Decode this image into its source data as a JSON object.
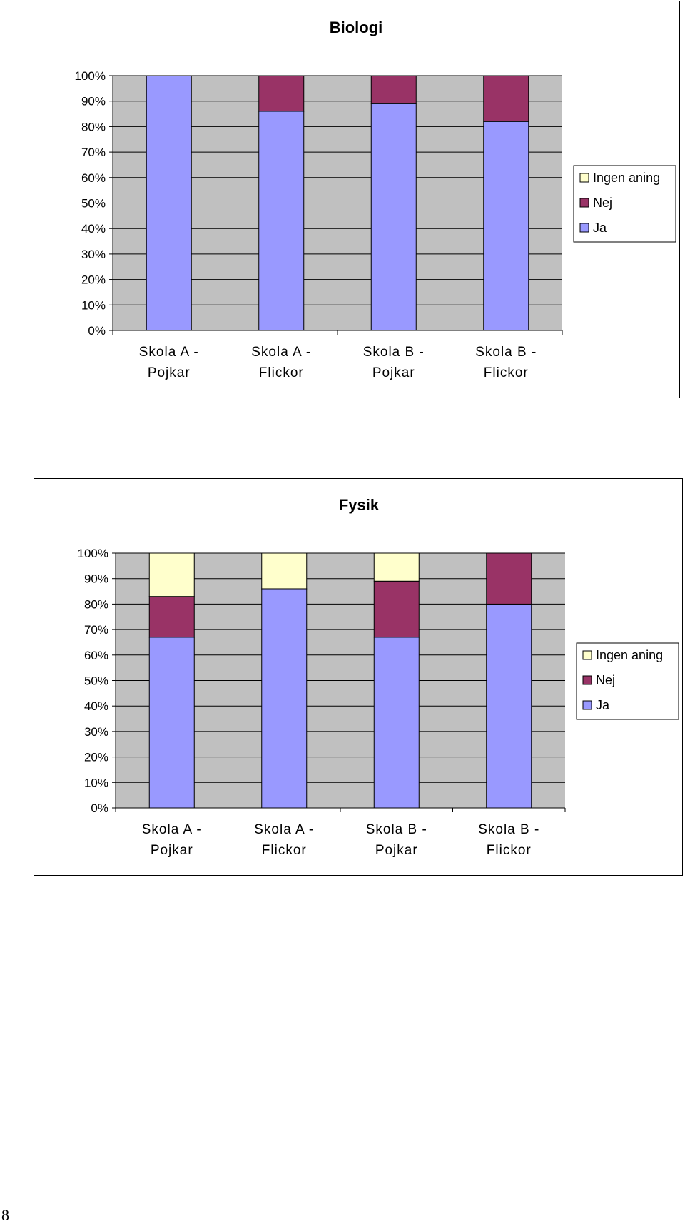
{
  "page": {
    "number": "8"
  },
  "chart_data": [
    {
      "id": "biologi",
      "type": "bar",
      "stacked": true,
      "percent": true,
      "title": "Biologi",
      "categories": [
        [
          "Skola A -",
          "Pojkar"
        ],
        [
          "Skola A -",
          "Flickor"
        ],
        [
          "Skola B -",
          "Pojkar"
        ],
        [
          "Skola B -",
          "Flickor"
        ]
      ],
      "series": [
        {
          "name": "Ja",
          "color": "#9999ff",
          "values": [
            100,
            86,
            89,
            82
          ]
        },
        {
          "name": "Nej",
          "color": "#993366",
          "values": [
            0,
            14,
            11,
            18
          ]
        },
        {
          "name": "Ingen aning",
          "color": "#ffffcc",
          "values": [
            0,
            0,
            0,
            0
          ]
        }
      ],
      "yticks": [
        "0%",
        "10%",
        "20%",
        "30%",
        "40%",
        "50%",
        "60%",
        "70%",
        "80%",
        "90%",
        "100%"
      ],
      "ylim": [
        0,
        100
      ],
      "legend": [
        "Ingen aning",
        "Nej",
        "Ja"
      ],
      "legend_position": "right",
      "plot_background": "#c0c0c0",
      "grid": true
    },
    {
      "id": "fysik",
      "type": "bar",
      "stacked": true,
      "percent": true,
      "title": "Fysik",
      "categories": [
        [
          "Skola A -",
          "Pojkar"
        ],
        [
          "Skola A -",
          "Flickor"
        ],
        [
          "Skola B -",
          "Pojkar"
        ],
        [
          "Skola B -",
          "Flickor"
        ]
      ],
      "series": [
        {
          "name": "Ja",
          "color": "#9999ff",
          "values": [
            67,
            86,
            67,
            80
          ]
        },
        {
          "name": "Nej",
          "color": "#993366",
          "values": [
            16,
            0,
            22,
            20
          ]
        },
        {
          "name": "Ingen aning",
          "color": "#ffffcc",
          "values": [
            17,
            14,
            11,
            0
          ]
        }
      ],
      "yticks": [
        "0%",
        "10%",
        "20%",
        "30%",
        "40%",
        "50%",
        "60%",
        "70%",
        "80%",
        "90%",
        "100%"
      ],
      "ylim": [
        0,
        100
      ],
      "legend": [
        "Ingen aning",
        "Nej",
        "Ja"
      ],
      "legend_position": "right",
      "plot_background": "#c0c0c0",
      "grid": true
    }
  ]
}
